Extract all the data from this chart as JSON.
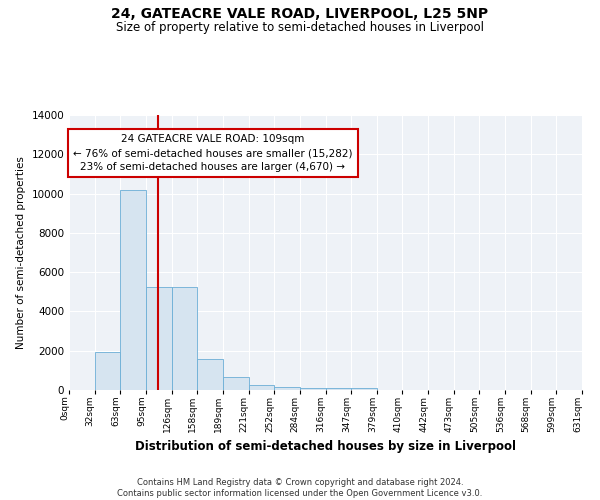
{
  "title1": "24, GATEACRE VALE ROAD, LIVERPOOL, L25 5NP",
  "title2": "Size of property relative to semi-detached houses in Liverpool",
  "xlabel": "Distribution of semi-detached houses by size in Liverpool",
  "ylabel": "Number of semi-detached properties",
  "bin_labels": [
    "0sqm",
    "32sqm",
    "63sqm",
    "95sqm",
    "126sqm",
    "158sqm",
    "189sqm",
    "221sqm",
    "252sqm",
    "284sqm",
    "316sqm",
    "347sqm",
    "379sqm",
    "410sqm",
    "442sqm",
    "473sqm",
    "505sqm",
    "536sqm",
    "568sqm",
    "599sqm",
    "631sqm"
  ],
  "bar_values": [
    0,
    1950,
    10200,
    5250,
    5250,
    1600,
    650,
    270,
    160,
    120,
    120,
    90,
    0,
    0,
    0,
    0,
    0,
    0,
    0,
    0
  ],
  "bar_color": "#d6e4f0",
  "bar_edge_color": "#6baed6",
  "vline_color": "#cc0000",
  "annotation_text": "24 GATEACRE VALE ROAD: 109sqm\n← 76% of semi-detached houses are smaller (15,282)\n23% of semi-detached houses are larger (4,670) →",
  "annotation_box_color": "#ffffff",
  "annotation_box_edge_color": "#cc0000",
  "ylim": [
    0,
    14000
  ],
  "yticks": [
    0,
    2000,
    4000,
    6000,
    8000,
    10000,
    12000,
    14000
  ],
  "bg_color": "#eef2f7",
  "grid_color": "#ffffff",
  "footer": "Contains HM Land Registry data © Crown copyright and database right 2024.\nContains public sector information licensed under the Open Government Licence v3.0.",
  "property_size": 109,
  "property_bin_lower": 95,
  "property_bin_upper": 126,
  "property_bin_index": 3
}
